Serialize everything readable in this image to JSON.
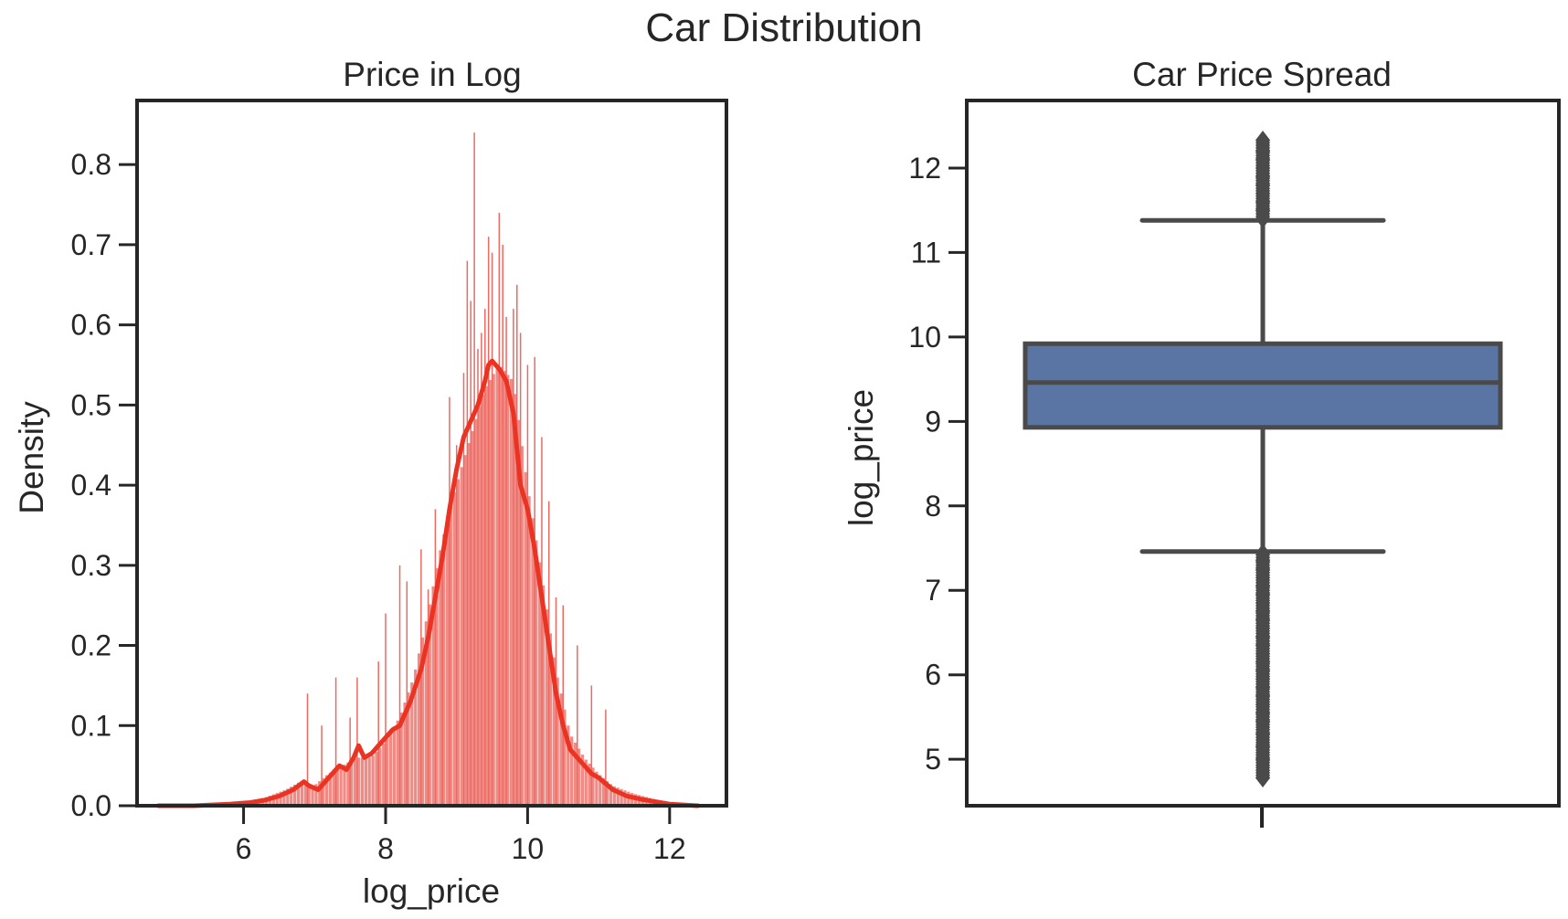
{
  "figure": {
    "title": "Car Distribution"
  },
  "chart_data": [
    {
      "type": "histogram",
      "title": "Price in Log",
      "xlabel": "log_price",
      "ylabel": "Density",
      "xlim": [
        4.5,
        12.8
      ],
      "ylim": [
        0,
        0.88
      ],
      "xticks": [
        6,
        8,
        10,
        12
      ],
      "yticks": [
        0.0,
        0.1,
        0.2,
        0.3,
        0.4,
        0.5,
        0.6,
        0.7,
        0.8
      ],
      "ytick_labels": [
        "0.0",
        "0.1",
        "0.2",
        "0.3",
        "0.4",
        "0.5",
        "0.6",
        "0.7",
        "0.8"
      ],
      "grid": false,
      "colors": {
        "bars": "#f08a85",
        "bar_spikes": "#ec6a62",
        "kde": "#ea3323",
        "axes": "#262626"
      },
      "histogram_envelope": {
        "x": [
          4.8,
          5.5,
          6.0,
          6.3,
          6.6,
          6.8,
          7.0,
          7.2,
          7.4,
          7.6,
          7.8,
          8.0,
          8.2,
          8.4,
          8.6,
          8.8,
          9.0,
          9.2,
          9.4,
          9.6,
          9.8,
          10.0,
          10.2,
          10.4,
          10.6,
          10.8,
          11.0,
          11.2,
          11.5,
          11.8,
          12.1,
          12.4
        ],
        "density": [
          0.0,
          0.002,
          0.005,
          0.01,
          0.02,
          0.03,
          0.025,
          0.04,
          0.05,
          0.06,
          0.06,
          0.08,
          0.11,
          0.16,
          0.24,
          0.33,
          0.4,
          0.46,
          0.52,
          0.55,
          0.53,
          0.4,
          0.29,
          0.17,
          0.09,
          0.06,
          0.04,
          0.025,
          0.015,
          0.008,
          0.003,
          0.0
        ]
      },
      "spikes": {
        "x": [
          6.9,
          7.1,
          7.3,
          7.5,
          7.6,
          7.9,
          8.0,
          8.2,
          8.3,
          8.5,
          8.6,
          8.7,
          8.8,
          8.9,
          9.0,
          9.1,
          9.15,
          9.2,
          9.25,
          9.3,
          9.35,
          9.4,
          9.45,
          9.5,
          9.6,
          9.65,
          9.7,
          9.8,
          9.85,
          9.9,
          10.0,
          10.1,
          10.2,
          10.3,
          10.4,
          10.5,
          10.7,
          10.9,
          11.1
        ],
        "density": [
          0.14,
          0.1,
          0.16,
          0.11,
          0.16,
          0.18,
          0.24,
          0.3,
          0.28,
          0.32,
          0.27,
          0.37,
          0.32,
          0.51,
          0.45,
          0.54,
          0.68,
          0.63,
          0.84,
          0.57,
          0.59,
          0.62,
          0.71,
          0.69,
          0.74,
          0.7,
          0.61,
          0.62,
          0.65,
          0.59,
          0.55,
          0.56,
          0.46,
          0.38,
          0.26,
          0.25,
          0.2,
          0.15,
          0.12
        ]
      },
      "kde": {
        "x": [
          4.8,
          5.3,
          5.8,
          6.1,
          6.3,
          6.5,
          6.7,
          6.85,
          6.92,
          7.05,
          7.2,
          7.35,
          7.45,
          7.55,
          7.62,
          7.7,
          7.8,
          7.9,
          8.0,
          8.1,
          8.2,
          8.35,
          8.5,
          8.6,
          8.7,
          8.8,
          8.9,
          9.0,
          9.1,
          9.2,
          9.3,
          9.4,
          9.45,
          9.5,
          9.6,
          9.7,
          9.8,
          9.9,
          10.0,
          10.1,
          10.2,
          10.3,
          10.4,
          10.5,
          10.6,
          10.7,
          10.8,
          10.9,
          11.0,
          11.2,
          11.4,
          11.6,
          11.8,
          12.0,
          12.2,
          12.4
        ],
        "density": [
          0.0,
          0.0,
          0.002,
          0.004,
          0.007,
          0.012,
          0.02,
          0.03,
          0.025,
          0.02,
          0.035,
          0.05,
          0.045,
          0.06,
          0.075,
          0.06,
          0.065,
          0.075,
          0.085,
          0.095,
          0.1,
          0.13,
          0.17,
          0.21,
          0.26,
          0.31,
          0.37,
          0.42,
          0.46,
          0.48,
          0.5,
          0.53,
          0.55,
          0.555,
          0.545,
          0.53,
          0.49,
          0.4,
          0.37,
          0.32,
          0.26,
          0.2,
          0.14,
          0.1,
          0.07,
          0.06,
          0.05,
          0.04,
          0.035,
          0.02,
          0.012,
          0.008,
          0.005,
          0.002,
          0.001,
          0.0
        ]
      }
    },
    {
      "type": "box",
      "title": "Car Price Spread",
      "xlabel": "",
      "ylabel": "log_price",
      "ylim": [
        4.45,
        12.8
      ],
      "yticks": [
        5,
        6,
        7,
        8,
        9,
        10,
        11,
        12
      ],
      "grid": false,
      "box": {
        "whisker_low": 7.46,
        "q1": 8.93,
        "median": 9.46,
        "q3": 9.92,
        "whisker_high": 11.38
      },
      "outliers": {
        "low_range": [
          4.78,
          7.44
        ],
        "high_range": [
          11.4,
          12.33
        ],
        "sample_low": [
          4.78,
          5.0,
          5.15,
          5.3,
          5.45,
          5.55,
          5.65,
          5.75,
          5.85,
          5.95,
          6.05,
          6.15,
          6.25,
          6.35,
          6.45,
          6.55,
          6.65,
          6.75,
          6.85,
          6.95,
          7.05,
          7.15,
          7.25,
          7.35,
          7.44
        ],
        "sample_high": [
          11.4,
          11.5,
          11.6,
          11.7,
          11.8,
          11.9,
          12.0,
          12.1,
          12.2,
          12.33
        ]
      },
      "colors": {
        "box_fill": "#5a74a3",
        "lines": "#4a4a4a",
        "axes": "#262626"
      }
    }
  ]
}
